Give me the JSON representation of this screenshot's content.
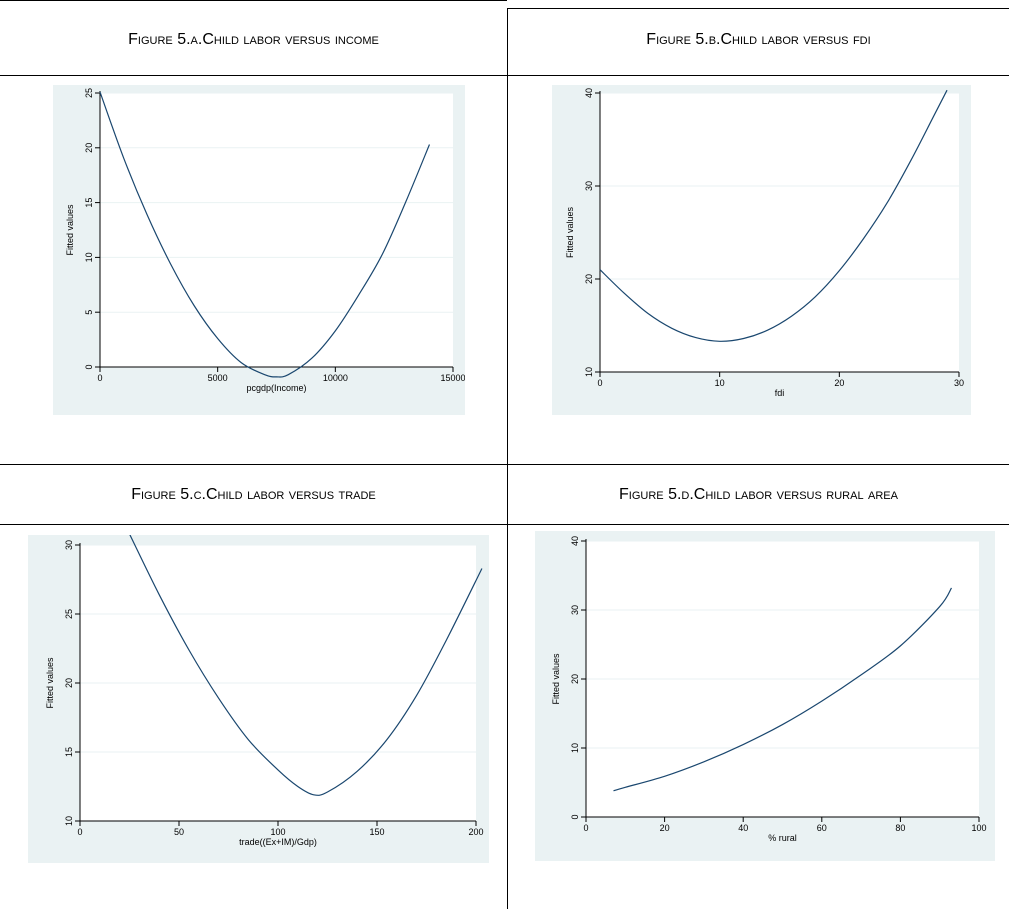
{
  "figures": [
    {
      "title": "Figure 5.a.Child labor versus income",
      "chart_data": {
        "type": "line",
        "xlabel": "pcgdp(Income)",
        "ylabel": "Fitted values",
        "xlim": [
          0,
          15000
        ],
        "ylim": [
          0,
          25
        ],
        "xticks": [
          "0",
          "5000",
          "10000",
          "15000"
        ],
        "yticks": [
          "0",
          "5",
          "10",
          "15",
          "20",
          "25"
        ],
        "grid": true,
        "series": [
          {
            "x": [
              0,
              1000,
              2000,
              3000,
              4000,
              5000,
              6000,
              7000,
              7500,
              8000,
              9000,
              10000,
              11000,
              12000,
              13000,
              14000
            ],
            "y": [
              25.1,
              19.1,
              13.9,
              9.4,
              5.6,
              2.6,
              0.4,
              -0.7,
              -0.9,
              -0.7,
              0.8,
              3.3,
              6.6,
              10.3,
              15.1,
              20.3
            ]
          }
        ]
      }
    },
    {
      "title": "Figure 5.b.Child labor versus fdi",
      "chart_data": {
        "type": "line",
        "xlabel": "fdi",
        "ylabel": "Fitted values",
        "xlim": [
          0,
          30
        ],
        "ylim": [
          10,
          40
        ],
        "xticks": [
          "0",
          "10",
          "20",
          "30"
        ],
        "yticks": [
          "10",
          "20",
          "30",
          "40"
        ],
        "grid": true,
        "series": [
          {
            "x": [
              0,
              2,
              4,
              6,
              8,
              10,
              12,
              14,
              16,
              18,
              20,
              22,
              24,
              26,
              28,
              29
            ],
            "y": [
              21.0,
              18.5,
              16.3,
              14.7,
              13.7,
              13.3,
              13.6,
              14.5,
              16.0,
              18.1,
              20.9,
              24.3,
              28.2,
              32.8,
              37.8,
              40.3
            ]
          }
        ]
      }
    },
    {
      "title": "Figure 5.c.Child labor versus trade",
      "chart_data": {
        "type": "line",
        "xlabel": "trade((Ex+IM)/Gdp)",
        "ylabel": "Fitted values",
        "xlim": [
          0,
          200
        ],
        "ylim": [
          10,
          30
        ],
        "xticks": [
          "0",
          "50",
          "100",
          "150",
          "200"
        ],
        "yticks": [
          "10",
          "15",
          "20",
          "25",
          "30"
        ],
        "grid": true,
        "series": [
          {
            "x": [
              25,
              40,
              55,
              70,
              85,
              100,
              110,
              118,
              125,
              140,
              155,
              170,
              185,
              203
            ],
            "y": [
              30.8,
              26.4,
              22.4,
              18.9,
              15.9,
              13.7,
              12.5,
              11.9,
              12.1,
              13.6,
              15.9,
              19.1,
              23.1,
              28.3
            ]
          }
        ]
      }
    },
    {
      "title": "Figure 5.d.Child labor versus rural area",
      "chart_data": {
        "type": "line",
        "xlabel": "% rural",
        "ylabel": "Fitted values",
        "xlim": [
          0,
          100
        ],
        "ylim": [
          0,
          40
        ],
        "xticks": [
          "0",
          "20",
          "40",
          "60",
          "80",
          "100"
        ],
        "yticks": [
          "0",
          "10",
          "20",
          "30",
          "40"
        ],
        "grid": true,
        "series": [
          {
            "x": [
              7,
              10,
              20,
              30,
              40,
              50,
              60,
              70,
              80,
              90,
              93
            ],
            "y": [
              3.8,
              4.3,
              5.9,
              8.0,
              10.5,
              13.4,
              16.8,
              20.6,
              24.8,
              30.5,
              33.2
            ]
          }
        ]
      }
    }
  ]
}
